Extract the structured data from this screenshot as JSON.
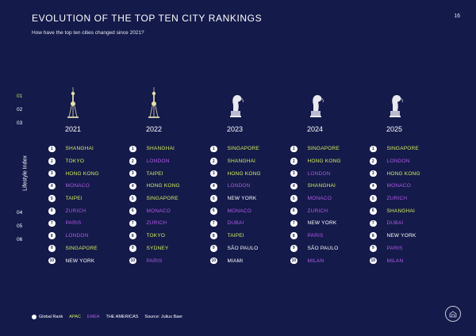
{
  "header": {
    "title": "EVOLUTION OF THE TOP TEN CITY RANKINGS",
    "subtitle": "How have the top ten cities changed since 2021?",
    "page_number": "16"
  },
  "chapter_nav": [
    "01",
    "02",
    "03",
    "04",
    "05",
    "06"
  ],
  "side_label": "Lifestyle Index",
  "colors": {
    "background": "#141a4a",
    "apac": "#d4ee5e",
    "emea": "#b05be6",
    "americas": "#ffffff"
  },
  "years": [
    {
      "year": "2021",
      "icon": "tower-icon",
      "ranks": [
        {
          "n": "1",
          "city": "SHANGHAI",
          "region": "apac"
        },
        {
          "n": "2",
          "city": "TOKYO",
          "region": "apac"
        },
        {
          "n": "3",
          "city": "HONG KONG",
          "region": "apac"
        },
        {
          "n": "4",
          "city": "MONACO",
          "region": "emea"
        },
        {
          "n": "5",
          "city": "TAIPEI",
          "region": "apac"
        },
        {
          "n": "6",
          "city": "ZURICH",
          "region": "emea"
        },
        {
          "n": "7",
          "city": "PARIS",
          "region": "emea"
        },
        {
          "n": "8",
          "city": "LONDON",
          "region": "emea"
        },
        {
          "n": "9",
          "city": "SINGAPORE",
          "region": "apac"
        },
        {
          "n": "10",
          "city": "NEW YORK",
          "region": "americas"
        }
      ]
    },
    {
      "year": "2022",
      "icon": "tower-icon",
      "ranks": [
        {
          "n": "1",
          "city": "SHANGHAI",
          "region": "apac"
        },
        {
          "n": "2",
          "city": "LONDON",
          "region": "emea"
        },
        {
          "n": "3",
          "city": "TAIPEI",
          "region": "apac"
        },
        {
          "n": "4",
          "city": "HONG KONG",
          "region": "apac"
        },
        {
          "n": "5",
          "city": "SINGAPORE",
          "region": "apac"
        },
        {
          "n": "6",
          "city": "MONACO",
          "region": "emea"
        },
        {
          "n": "7",
          "city": "ZURICH",
          "region": "emea"
        },
        {
          "n": "8",
          "city": "TOKYO",
          "region": "apac"
        },
        {
          "n": "9",
          "city": "SYDNEY",
          "region": "apac"
        },
        {
          "n": "10",
          "city": "PARIS",
          "region": "emea"
        }
      ]
    },
    {
      "year": "2023",
      "icon": "merlion-icon",
      "ranks": [
        {
          "n": "1",
          "city": "SINGAPORE",
          "region": "apac"
        },
        {
          "n": "2",
          "city": "SHANGHAI",
          "region": "apac"
        },
        {
          "n": "3",
          "city": "HONG KONG",
          "region": "apac"
        },
        {
          "n": "4",
          "city": "LONDON",
          "region": "emea"
        },
        {
          "n": "5",
          "city": "NEW YORK",
          "region": "americas"
        },
        {
          "n": "6",
          "city": "MONACO",
          "region": "emea"
        },
        {
          "n": "7",
          "city": "DUBAI",
          "region": "emea"
        },
        {
          "n": "8",
          "city": "TAIPEI",
          "region": "apac"
        },
        {
          "n": "9",
          "city": "SÃO PAULO",
          "region": "americas"
        },
        {
          "n": "10",
          "city": "MIAMI",
          "region": "americas"
        }
      ]
    },
    {
      "year": "2024",
      "icon": "merlion-icon",
      "ranks": [
        {
          "n": "1",
          "city": "SINGAPORE",
          "region": "apac"
        },
        {
          "n": "2",
          "city": "HONG KONG",
          "region": "apac"
        },
        {
          "n": "3",
          "city": "LONDON",
          "region": "emea"
        },
        {
          "n": "4",
          "city": "SHANGHAI",
          "region": "apac"
        },
        {
          "n": "5",
          "city": "MONACO",
          "region": "emea"
        },
        {
          "n": "6",
          "city": "ZURICH",
          "region": "emea"
        },
        {
          "n": "7",
          "city": "NEW YORK",
          "region": "americas"
        },
        {
          "n": "8",
          "city": "PARIS",
          "region": "emea"
        },
        {
          "n": "9",
          "city": "SÃO PAULO",
          "region": "americas"
        },
        {
          "n": "10",
          "city": "MILAN",
          "region": "emea"
        }
      ]
    },
    {
      "year": "2025",
      "icon": "merlion-icon",
      "ranks": [
        {
          "n": "1",
          "city": "SINGAPORE",
          "region": "apac"
        },
        {
          "n": "2",
          "city": "LONDON",
          "region": "emea"
        },
        {
          "n": "3",
          "city": "HONG KONG",
          "region": "apac"
        },
        {
          "n": "4",
          "city": "MONACO",
          "region": "emea"
        },
        {
          "n": "5",
          "city": "ZURICH",
          "region": "emea"
        },
        {
          "n": "6",
          "city": "SHANGHAI",
          "region": "apac"
        },
        {
          "n": "7",
          "city": "DUBAI",
          "region": "emea"
        },
        {
          "n": "8",
          "city": "NEW YORK",
          "region": "americas"
        },
        {
          "n": "9",
          "city": "PARIS",
          "region": "emea"
        },
        {
          "n": "10",
          "city": "MILAN",
          "region": "emea"
        }
      ]
    }
  ],
  "legend": {
    "global_rank": "Global Rank",
    "apac": "APAC",
    "emea": "EMEA",
    "americas": "THE AMERICAS",
    "source": "Source: Julius Baer"
  }
}
